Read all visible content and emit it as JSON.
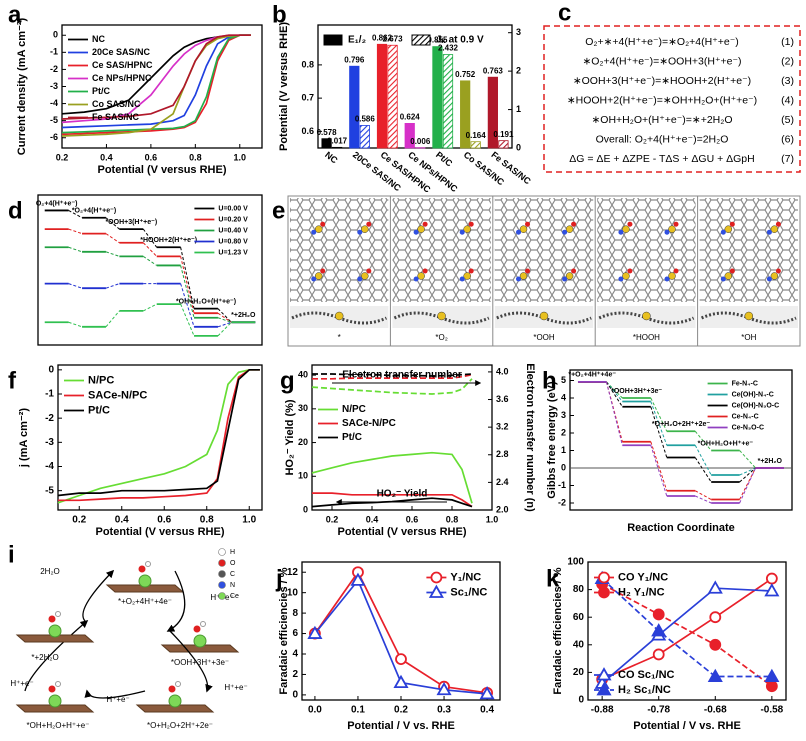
{
  "chart_data": [
    {
      "panel": "a",
      "type": "line",
      "xlabel": "Potential (V versus RHE)",
      "ylabel": "Current density (mA cm⁻²)",
      "x": [
        0.2,
        0.3,
        0.4,
        0.5,
        0.6,
        0.7,
        0.75,
        0.8,
        0.85,
        0.9,
        0.95,
        1.0,
        1.05
      ],
      "xlim": [
        0.2,
        1.1
      ],
      "xticks": [
        0.2,
        0.4,
        0.6,
        0.8,
        {
          "value": 1,
          "label": "1.0"
        }
      ],
      "ylim": [
        -6.6,
        0.6
      ],
      "yticks": [
        -6,
        -5,
        -4,
        -3,
        -2,
        -1,
        0
      ],
      "legend": "upper left",
      "legend_colored_text": true,
      "series": [
        {
          "name": "NC",
          "color": "#000000",
          "values": [
            -4.6,
            -4.5,
            -4.3,
            -3.8,
            -2.5,
            -1.2,
            -0.7,
            -0.4,
            -0.2,
            -0.1,
            -0.05,
            0,
            0
          ]
        },
        {
          "name": "20Ce SAS/NC",
          "color": "#2040e0",
          "values": [
            -5.4,
            -5.35,
            -5.3,
            -5.25,
            -5.2,
            -5.0,
            -4.7,
            -3.5,
            -1.8,
            -0.5,
            -0.1,
            0,
            0
          ]
        },
        {
          "name": "Ce SAS/HPNC",
          "color": "#e8202a",
          "values": [
            -5.8,
            -5.75,
            -5.7,
            -5.65,
            -5.6,
            -5.5,
            -5.4,
            -5.1,
            -4.0,
            -1.5,
            -0.3,
            0,
            0
          ]
        },
        {
          "name": "Ce NPs/HPNC",
          "color": "#d630c8",
          "values": [
            -5.1,
            -5.0,
            -4.9,
            -4.6,
            -3.5,
            -1.8,
            -1.1,
            -0.6,
            -0.3,
            -0.1,
            0,
            0,
            0
          ]
        },
        {
          "name": "Pt/C",
          "color": "#22b04a",
          "values": [
            -5.7,
            -5.65,
            -5.6,
            -5.55,
            -5.5,
            -5.45,
            -5.35,
            -5.0,
            -3.6,
            -1.3,
            -0.2,
            0,
            0
          ]
        },
        {
          "name": "Co SAS/NC",
          "color": "#9aa020",
          "values": [
            -5.9,
            -5.85,
            -5.8,
            -5.7,
            -5.5,
            -4.6,
            -3.0,
            -1.5,
            -0.6,
            -0.2,
            -0.05,
            0,
            0
          ]
        },
        {
          "name": "Fe SAS/NC",
          "color": "#b0182a",
          "values": [
            -4.9,
            -4.85,
            -4.8,
            -4.75,
            -4.6,
            -4.1,
            -3.0,
            -1.5,
            -0.5,
            -0.1,
            0,
            0,
            0
          ]
        }
      ]
    },
    {
      "panel": "b",
      "type": "bar",
      "ylabel": "Potential (V versus RHE)",
      "categories": [
        "NC",
        "20Ce SAS/NC",
        "Ce SAS/HPNC",
        "Ce NPs/HPNC",
        "Pt/C",
        "Co SAS/NC",
        "Fe SAS/NC"
      ],
      "colors": [
        "#000000",
        "#2040e0",
        "#e8202a",
        "#d630c8",
        "#22b04a",
        "#9aa020",
        "#b0182a"
      ],
      "ylim": [
        0.55,
        0.92
      ],
      "yticks": [
        0.6,
        0.7,
        0.8
      ],
      "y2lim": [
        0,
        3.2
      ],
      "y2ticks": [
        0,
        1,
        2,
        3
      ],
      "series": [
        {
          "name": "E₁/₂",
          "color": "#000000",
          "legend": "upper left",
          "values": [
            0.578,
            0.796,
            0.862,
            0.624,
            0.855,
            0.752,
            0.763
          ]
        },
        {
          "name": "Jₖ at 0.9 V",
          "color": "#000000",
          "legend": "upper right",
          "axis": "y2",
          "hatch": true,
          "values": [
            0.017,
            0.586,
            2.673,
            0.006,
            2.432,
            0.164,
            0.191
          ]
        }
      ]
    },
    {
      "panel": "d",
      "type": "step",
      "categories": [
        "O₂+4(H⁺+e⁻)",
        "*O₂+4(H⁺+e⁻)",
        "*OOH+3(H⁺+e⁻)",
        "*HOOH+2(H⁺+e⁻)",
        "*OH+H₂O+(H⁺+e⁻)",
        "*+2H₂O"
      ],
      "ylim": [
        -1,
        5.6
      ],
      "legend": "upper right",
      "series": [
        {
          "name": "U=0.00 V",
          "color": "#000000",
          "values": [
            4.92,
            4.6,
            4.1,
            3.3,
            0.6,
            0
          ]
        },
        {
          "name": "U=0.20 V",
          "color": "#e02020",
          "values": [
            4.1,
            3.9,
            3.5,
            2.9,
            0.4,
            0
          ]
        },
        {
          "name": "U=0.40 V",
          "color": "#20a040",
          "values": [
            3.3,
            3.1,
            2.9,
            2.5,
            0.2,
            0
          ]
        },
        {
          "name": "U=0.80 V",
          "color": "#2030d0",
          "values": [
            1.7,
            1.5,
            1.7,
            1.7,
            -0.2,
            0
          ]
        },
        {
          "name": "U=1.23 V",
          "color": "#30c050",
          "values": [
            0,
            -0.2,
            0.5,
            0.8,
            -0.6,
            0
          ]
        }
      ]
    },
    {
      "panel": "f",
      "type": "line",
      "xlabel": "Potential (V versus RHE)",
      "ylabel": "j (mA cm⁻²)",
      "x": [
        0.1,
        0.2,
        0.3,
        0.4,
        0.5,
        0.6,
        0.7,
        0.8,
        0.85,
        0.9,
        0.95,
        1.0,
        1.05
      ],
      "xlim": [
        0.1,
        1.06
      ],
      "xticks": [
        0.2,
        0.4,
        0.6,
        0.8,
        {
          "value": 1,
          "label": "1.0"
        }
      ],
      "ylim": [
        -5.8,
        0.2
      ],
      "yticks": [
        -5,
        -4,
        -3,
        -2,
        -1,
        0
      ],
      "legend": "upper left",
      "legend_colored_text": true,
      "series": [
        {
          "name": "N/PC",
          "color": "#66dd33",
          "values": [
            -5.5,
            -5.2,
            -4.9,
            -4.7,
            -4.5,
            -4.3,
            -4.0,
            -3.5,
            -2.5,
            -0.6,
            -0.1,
            0,
            0
          ]
        },
        {
          "name": "SACe-N/PC",
          "color": "#e8202a",
          "values": [
            -5.4,
            -5.4,
            -5.35,
            -5.3,
            -5.3,
            -5.25,
            -5.2,
            -5.1,
            -4.5,
            -2.0,
            -0.3,
            0,
            0
          ]
        },
        {
          "name": "Pt/C",
          "color": "#000000",
          "values": [
            -5.2,
            -5.1,
            -5.1,
            -5.0,
            -5.0,
            -5.0,
            -4.95,
            -4.9,
            -4.6,
            -2.5,
            -0.4,
            0,
            0
          ]
        }
      ]
    },
    {
      "panel": "g",
      "type": "line",
      "xlabel": "Potential (V versus RHE)",
      "ylabel": "HO₂⁻ Yield (%)",
      "y2label": "Electron transfer number (n)",
      "annotations": [
        "Electron transfer number",
        "HO₂⁻ Yield"
      ],
      "x": [
        0.1,
        0.2,
        0.3,
        0.4,
        0.5,
        0.6,
        0.7,
        0.8,
        0.85,
        0.9
      ],
      "xlim": [
        0.1,
        1.0
      ],
      "xticks": [
        0.2,
        0.4,
        0.6,
        0.8,
        {
          "value": 1,
          "label": "1.0"
        }
      ],
      "ylim": [
        0,
        43
      ],
      "yticks": [
        0,
        10,
        20,
        30,
        40
      ],
      "y2lim": [
        2.0,
        4.1
      ],
      "y2ticks": [
        {
          "value": 2,
          "label": "2.0"
        },
        2.4,
        2.8,
        3.2,
        3.6,
        {
          "value": 4,
          "label": "4.0"
        }
      ],
      "legend": "center left",
      "legend_colored_text": true,
      "series": [
        {
          "name": "N/PC",
          "color": "#66dd33",
          "values": [
            11,
            12.5,
            14,
            15,
            16,
            16.5,
            17,
            16.5,
            12,
            2
          ]
        },
        {
          "name": "SACe-N/PC",
          "color": "#e8202a",
          "values": [
            5,
            5,
            4.5,
            4.5,
            4.5,
            4.5,
            4.5,
            4.5,
            3,
            1
          ]
        },
        {
          "name": "Pt/C",
          "color": "#000000",
          "values": [
            1,
            1.5,
            2,
            2.2,
            2.5,
            3,
            3.5,
            3,
            2,
            1
          ]
        },
        {
          "color": "#66dd33",
          "axis": "y2",
          "dash": true,
          "values": [
            3.78,
            3.76,
            3.74,
            3.72,
            3.7,
            3.69,
            3.68,
            3.7,
            3.75,
            3.9
          ]
        },
        {
          "color": "#e8202a",
          "axis": "y2",
          "dash": true,
          "values": [
            3.9,
            3.9,
            3.91,
            3.91,
            3.91,
            3.91,
            3.91,
            3.91,
            3.93,
            3.96
          ]
        },
        {
          "color": "#000000",
          "axis": "y2",
          "dash": true,
          "values": [
            3.97,
            3.97,
            3.96,
            3.96,
            3.95,
            3.95,
            3.94,
            3.95,
            3.96,
            3.97
          ]
        }
      ]
    },
    {
      "panel": "h",
      "type": "step",
      "xlabel": "Reaction Coordinate",
      "ylabel": "Gibbs free energy (eV)",
      "categories": [
        "*+O₂+4H⁺+4e⁻",
        "*OOH+3H⁺+3e⁻",
        "*O+H₂O+2H⁺+2e⁻",
        "*OH+H₂O+H⁺+e⁻",
        "*+2H₂O"
      ],
      "ylim": [
        -2.4,
        5.6
      ],
      "yticks": [
        -2,
        -1,
        0,
        1,
        2,
        3,
        4,
        5
      ],
      "zero_line": true,
      "legend": "upper right",
      "series": [
        {
          "name": "Fe-N₄-C",
          "color": "#3cb44b",
          "values": [
            4.92,
            4.0,
            2.1,
            1.0,
            0
          ]
        },
        {
          "name": "Ce(OH)-N₄-C",
          "color": "#20a0a0",
          "values": [
            4.92,
            3.8,
            1.3,
            -0.4,
            0
          ]
        },
        {
          "name": "Ce(OH)-N₃O-C",
          "color": "#000000",
          "values": [
            4.92,
            3.5,
            0.6,
            -0.8,
            0
          ]
        },
        {
          "name": "Ce-N₄-C",
          "color": "#e02020",
          "values": [
            4.92,
            1.5,
            -1.3,
            -1.8,
            0
          ]
        },
        {
          "name": "Ce-N₃O-C",
          "color": "#9040c0",
          "values": [
            4.92,
            1.3,
            -1.6,
            -2.0,
            0
          ]
        }
      ]
    },
    {
      "panel": "j",
      "type": "line",
      "xlabel": "Potential / V vs. RHE",
      "ylabel": "Faradaic efficiencies / %",
      "x": [
        0,
        0.1,
        0.2,
        0.3,
        0.4
      ],
      "xlim": [
        -0.03,
        0.43
      ],
      "xticks": [
        {
          "value": 0,
          "label": "0.0"
        },
        0.1,
        0.2,
        0.3,
        0.4
      ],
      "ylim": [
        -0.5,
        13
      ],
      "yticks": [
        0,
        2,
        4,
        6,
        8,
        10,
        12
      ],
      "legend": "upper right",
      "series": [
        {
          "name": "Y₁/NC",
          "color": "#e8202a",
          "marker": "circle",
          "filled": false,
          "values": [
            6,
            12,
            3.5,
            0.8,
            0.2
          ]
        },
        {
          "name": "Sc₁/NC",
          "color": "#2a3fd8",
          "marker": "triangle",
          "filled": false,
          "values": [
            6,
            11.2,
            1.2,
            0.5,
            0.1
          ]
        }
      ]
    },
    {
      "panel": "k",
      "type": "line",
      "xlabel": "Potential / V vs. RHE",
      "ylabel": "Faradaic efficiencies / %",
      "x": [
        -0.88,
        -0.78,
        -0.68,
        -0.58
      ],
      "xlim": [
        -0.905,
        -0.555
      ],
      "xticks": [
        -0.88,
        -0.78,
        -0.68,
        -0.58
      ],
      "ylim": [
        0,
        100
      ],
      "yticks": [
        0,
        20,
        40,
        60,
        80,
        100
      ],
      "legend": "upper left",
      "series": [
        {
          "name": "CO Y₁/NC",
          "color": "#e8202a",
          "marker": "circle",
          "filled": false,
          "values": [
            15,
            33,
            60,
            88
          ]
        },
        {
          "name": "H₂ Y₁/NC",
          "color": "#e8202a",
          "marker": "circle",
          "filled": true,
          "dash": true,
          "values": [
            84,
            62,
            40,
            10
          ]
        },
        {
          "name": "CO Sc₁/NC",
          "color": "#2a3fd8",
          "marker": "triangle",
          "filled": false,
          "legend": "lower left",
          "values": [
            12,
            47,
            81,
            79
          ]
        },
        {
          "name": "H₂ Sc₁/NC",
          "color": "#2a3fd8",
          "marker": "triangle",
          "filled": true,
          "dash": true,
          "legend": "lower left",
          "values": [
            88,
            50,
            17,
            17
          ]
        }
      ]
    }
  ],
  "equations": {
    "panel": "c",
    "lines": [
      {
        "text": "O₂+∗+4(H⁺+e⁻)=∗O₂+4(H⁺+e⁻)",
        "number": "(1)"
      },
      {
        "text": "∗O₂+4(H⁺+e⁻)=∗OOH+3(H⁺+e⁻)",
        "number": "(2)"
      },
      {
        "text": "∗OOH+3(H⁺+e⁻)=∗HOOH+2(H⁺+e⁻)",
        "number": "(3)"
      },
      {
        "text": "∗HOOH+2(H⁺+e⁻)=∗OH+H₂O+(H⁺+e⁻)",
        "number": "(4)"
      },
      {
        "text": "∗OH+H₂O+(H⁺+e⁻)=∗+2H₂O",
        "number": "(5)"
      },
      {
        "text": "Overall: O₂+4(H⁺+e⁻)=2H₂O",
        "number": "(6)"
      },
      {
        "text": "ΔG = ΔE + ΔZPE - TΔS + ΔGU + ΔGpH",
        "number": "(7)"
      }
    ]
  },
  "structures": {
    "panel": "e",
    "labels": [
      "*",
      "*O₂",
      "*OOH",
      "*HOOH",
      "*OH"
    ]
  },
  "cycle": {
    "panel": "i",
    "legend": [
      {
        "label": "H",
        "color": "#ffffff"
      },
      {
        "label": "O",
        "color": "#e02020"
      },
      {
        "label": "C",
        "color": "#555555"
      },
      {
        "label": "N",
        "color": "#3050e0"
      },
      {
        "label": "Ce",
        "color": "#7ed957"
      }
    ],
    "states": [
      "*+O₂+4H⁺+4e⁻",
      "*OOH+3H⁺+3e⁻",
      "*O+H₂O+2H⁺+2e⁻",
      "*OH+H₂O+H⁺+e⁻",
      "*+2H₂O"
    ],
    "arrows": [
      "H⁺+e⁻",
      "H⁺+e⁻",
      "H⁺+e⁻",
      "H⁺+e⁻",
      "2H₂O"
    ]
  }
}
